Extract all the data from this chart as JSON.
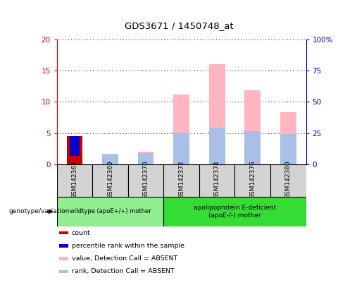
{
  "title": "GDS3671 / 1450748_at",
  "samples": [
    "GSM142367",
    "GSM142369",
    "GSM142370",
    "GSM142372",
    "GSM142374",
    "GSM142376",
    "GSM142380"
  ],
  "ylim_left": [
    0,
    20
  ],
  "ylim_right": [
    0,
    100
  ],
  "yticks_left": [
    0,
    5,
    10,
    15,
    20
  ],
  "yticks_right": [
    0,
    25,
    50,
    75,
    100
  ],
  "ytick_labels_left": [
    "0",
    "5",
    "10",
    "15",
    "20"
  ],
  "ytick_labels_right": [
    "0",
    "25",
    "50",
    "75",
    "100%"
  ],
  "bars": {
    "GSM142367": {
      "count": 4.5,
      "rank": 3.2,
      "value_absent": 0,
      "rank_absent": 0
    },
    "GSM142369": {
      "count": 0,
      "rank": 0,
      "value_absent": 1.7,
      "rank_absent": 1.5
    },
    "GSM142370": {
      "count": 0,
      "rank": 0,
      "value_absent": 2.0,
      "rank_absent": 1.8
    },
    "GSM142372": {
      "count": 0,
      "rank": 0,
      "value_absent": 11.2,
      "rank_absent": 5.1
    },
    "GSM142374": {
      "count": 0,
      "rank": 0,
      "value_absent": 16.0,
      "rank_absent": 5.9
    },
    "GSM142376": {
      "count": 0,
      "rank": 0,
      "value_absent": 11.9,
      "rank_absent": 5.3
    },
    "GSM142380": {
      "count": 0,
      "rank": 0,
      "value_absent": 8.4,
      "rank_absent": 4.8
    }
  },
  "group1_samples": [
    "GSM142367",
    "GSM142369",
    "GSM142370"
  ],
  "group2_samples": [
    "GSM142372",
    "GSM142374",
    "GSM142376",
    "GSM142380"
  ],
  "group1_label": "wildtype (apoE+/+) mother",
  "group2_label": "apolipoprotein E-deficient\n(apoE-/-) mother",
  "group1_color": "#90EE90",
  "group2_color": "#33DD33",
  "genotype_label": "genotype/variation",
  "color_count": "#CC0000",
  "color_rank": "#0000CC",
  "color_value_absent": "#FFB6C1",
  "color_rank_absent": "#AABFE8",
  "bar_width": 0.45,
  "axis_left_color": "#CC0000",
  "axis_right_color": "#0000BB",
  "plot_bg": "#FFFFFF",
  "sample_area_bg": "#D3D3D3",
  "legend_items": [
    [
      "#CC0000",
      "count"
    ],
    [
      "#0000CC",
      "percentile rank within the sample"
    ],
    [
      "#FFB6C1",
      "value, Detection Call = ABSENT"
    ],
    [
      "#AABFE8",
      "rank, Detection Call = ABSENT"
    ]
  ]
}
